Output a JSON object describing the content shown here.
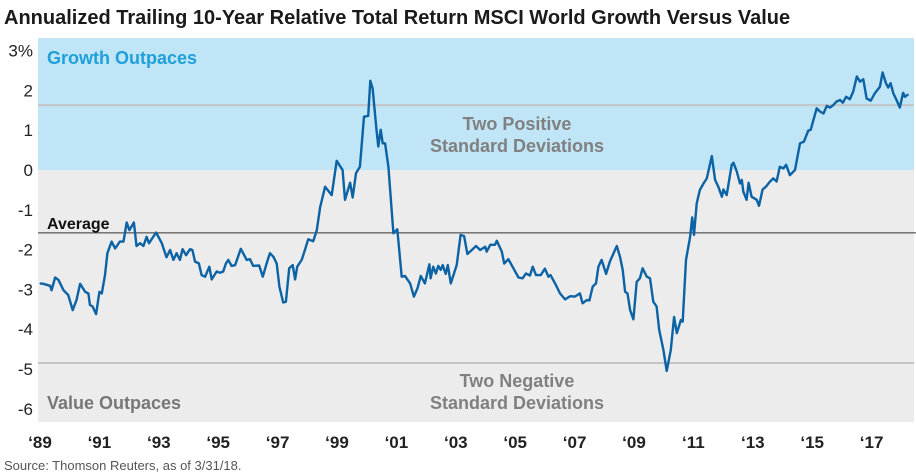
{
  "chart_data": {
    "type": "line",
    "title": "Annualized Trailing 10-Year Relative Total Return MSCI World Growth Versus Value",
    "xlabel": "",
    "ylabel": "",
    "ylim": [
      -6.33,
      3.3
    ],
    "xlim": [
      1989,
      2018.25
    ],
    "grid": false,
    "x_ticks": [
      {
        "value": 1989,
        "label": "‘89"
      },
      {
        "value": 1991,
        "label": "‘91"
      },
      {
        "value": 1993,
        "label": "‘93"
      },
      {
        "value": 1995,
        "label": "‘95"
      },
      {
        "value": 1997,
        "label": "‘97"
      },
      {
        "value": 1999,
        "label": "‘99"
      },
      {
        "value": 2001,
        "label": "‘01"
      },
      {
        "value": 2003,
        "label": "‘03"
      },
      {
        "value": 2005,
        "label": "‘05"
      },
      {
        "value": 2007,
        "label": "‘07"
      },
      {
        "value": 2009,
        "label": "‘09"
      },
      {
        "value": 2011,
        "label": "‘11"
      },
      {
        "value": 2013,
        "label": "‘13"
      },
      {
        "value": 2015,
        "label": "‘15"
      },
      {
        "value": 2017,
        "label": "‘17"
      }
    ],
    "y_ticks": [
      {
        "value": 3,
        "label": "3%"
      },
      {
        "value": 2,
        "label": "2"
      },
      {
        "value": 1,
        "label": "1"
      },
      {
        "value": 0,
        "label": "0"
      },
      {
        "value": -1,
        "label": "-1"
      },
      {
        "value": -2,
        "label": "-2"
      },
      {
        "value": -3,
        "label": "-3"
      },
      {
        "value": -4,
        "label": "-4"
      },
      {
        "value": -5,
        "label": "-5"
      },
      {
        "value": -6,
        "label": "-6"
      }
    ],
    "reference_lines": {
      "average": {
        "value": -1.58,
        "label": "Average"
      },
      "plus_two_sd": {
        "value": 1.63,
        "label_line1": "Two Positive",
        "label_line2": "Standard Deviations"
      },
      "minus_two_sd": {
        "value": -4.85,
        "label_line1": "Two Negative",
        "label_line2": "Standard Deviations"
      }
    },
    "regions": {
      "growth": {
        "label": "Growth Outpaces",
        "color": "#bfe5f6",
        "text_color": "#1fa0db"
      },
      "value": {
        "label": "Value Outpaces",
        "color": "#ececec",
        "text_color": "#777777"
      }
    },
    "colors": {
      "line": "#0b62a4",
      "sd_line": "#c4c4c4",
      "average_line": "#333333",
      "annotation": "#808080"
    },
    "series": [
      {
        "points": [
          [
            1989.0,
            -2.85
          ],
          [
            1989.11,
            -2.86
          ],
          [
            1989.34,
            -2.91
          ],
          [
            1989.39,
            -3.02
          ],
          [
            1989.51,
            -2.7
          ],
          [
            1989.62,
            -2.76
          ],
          [
            1989.79,
            -3.02
          ],
          [
            1989.95,
            -3.14
          ],
          [
            1990.1,
            -3.52
          ],
          [
            1990.23,
            -3.27
          ],
          [
            1990.35,
            -2.86
          ],
          [
            1990.52,
            -3.06
          ],
          [
            1990.63,
            -3.1
          ],
          [
            1990.68,
            -3.39
          ],
          [
            1990.77,
            -3.43
          ],
          [
            1990.89,
            -3.62
          ],
          [
            1991.0,
            -3.06
          ],
          [
            1991.08,
            -3.1
          ],
          [
            1991.19,
            -2.64
          ],
          [
            1991.27,
            -2.09
          ],
          [
            1991.41,
            -1.8
          ],
          [
            1991.53,
            -1.97
          ],
          [
            1991.69,
            -1.8
          ],
          [
            1991.81,
            -1.8
          ],
          [
            1991.92,
            -1.32
          ],
          [
            1992.01,
            -1.51
          ],
          [
            1992.16,
            -1.32
          ],
          [
            1992.25,
            -1.91
          ],
          [
            1992.37,
            -1.84
          ],
          [
            1992.48,
            -1.91
          ],
          [
            1992.59,
            -1.68
          ],
          [
            1992.67,
            -1.84
          ],
          [
            1992.91,
            -1.57
          ],
          [
            1993.1,
            -1.84
          ],
          [
            1993.26,
            -2.19
          ],
          [
            1993.38,
            -2.01
          ],
          [
            1993.49,
            -2.26
          ],
          [
            1993.6,
            -2.09
          ],
          [
            1993.71,
            -2.26
          ],
          [
            1993.8,
            -1.99
          ],
          [
            1993.92,
            -2.14
          ],
          [
            1994.05,
            -1.99
          ],
          [
            1994.13,
            -2.01
          ],
          [
            1994.22,
            -2.3
          ],
          [
            1994.35,
            -2.35
          ],
          [
            1994.44,
            -2.64
          ],
          [
            1994.56,
            -2.68
          ],
          [
            1994.7,
            -2.43
          ],
          [
            1994.78,
            -2.75
          ],
          [
            1994.95,
            -2.55
          ],
          [
            1995.06,
            -2.58
          ],
          [
            1995.17,
            -2.55
          ],
          [
            1995.26,
            -2.35
          ],
          [
            1995.34,
            -2.26
          ],
          [
            1995.45,
            -2.41
          ],
          [
            1995.57,
            -2.39
          ],
          [
            1995.76,
            -1.98
          ],
          [
            1995.96,
            -2.26
          ],
          [
            1996.07,
            -2.24
          ],
          [
            1996.18,
            -2.41
          ],
          [
            1996.38,
            -2.4
          ],
          [
            1996.5,
            -2.68
          ],
          [
            1996.63,
            -2.35
          ],
          [
            1996.74,
            -2.09
          ],
          [
            1996.86,
            -2.18
          ],
          [
            1996.97,
            -2.35
          ],
          [
            1997.06,
            -2.93
          ],
          [
            1997.19,
            -3.33
          ],
          [
            1997.28,
            -3.31
          ],
          [
            1997.39,
            -2.47
          ],
          [
            1997.51,
            -2.39
          ],
          [
            1997.59,
            -2.75
          ],
          [
            1997.66,
            -2.43
          ],
          [
            1997.81,
            -2.26
          ],
          [
            1997.92,
            -2.01
          ],
          [
            1998.03,
            -1.74
          ],
          [
            1998.2,
            -1.79
          ],
          [
            1998.32,
            -1.51
          ],
          [
            1998.43,
            -0.94
          ],
          [
            1998.6,
            -0.42
          ],
          [
            1998.82,
            -0.63
          ],
          [
            1998.99,
            0.23
          ],
          [
            1999.19,
            0.0
          ],
          [
            1999.27,
            -0.75
          ],
          [
            1999.44,
            -0.32
          ],
          [
            1999.53,
            -0.69
          ],
          [
            1999.64,
            -0.08
          ],
          [
            1999.77,
            0.08
          ],
          [
            1999.91,
            1.34
          ],
          [
            2000.05,
            1.36
          ],
          [
            2000.12,
            2.24
          ],
          [
            2000.2,
            2.05
          ],
          [
            2000.33,
            1.01
          ],
          [
            2000.39,
            0.59
          ],
          [
            2000.47,
            1.01
          ],
          [
            2000.54,
            0.67
          ],
          [
            2000.62,
            0.67
          ],
          [
            2000.73,
            0.08
          ],
          [
            2000.9,
            -1.59
          ],
          [
            2001.03,
            -1.49
          ],
          [
            2001.18,
            -2.68
          ],
          [
            2001.29,
            -2.66
          ],
          [
            2001.46,
            -2.85
          ],
          [
            2001.59,
            -3.18
          ],
          [
            2001.71,
            -2.97
          ],
          [
            2001.82,
            -2.66
          ],
          [
            2001.96,
            -2.85
          ],
          [
            2002.11,
            -2.37
          ],
          [
            2002.15,
            -2.72
          ],
          [
            2002.24,
            -2.43
          ],
          [
            2002.33,
            -2.6
          ],
          [
            2002.41,
            -2.41
          ],
          [
            2002.49,
            -2.51
          ],
          [
            2002.56,
            -2.39
          ],
          [
            2002.66,
            -2.61
          ],
          [
            2002.73,
            -2.39
          ],
          [
            2002.83,
            -2.85
          ],
          [
            2003.03,
            -2.39
          ],
          [
            2003.16,
            -1.63
          ],
          [
            2003.28,
            -1.66
          ],
          [
            2003.39,
            -2.11
          ],
          [
            2003.54,
            -2.01
          ],
          [
            2003.68,
            -1.91
          ],
          [
            2003.82,
            -2.01
          ],
          [
            2003.99,
            -1.93
          ],
          [
            2004.04,
            -2.05
          ],
          [
            2004.16,
            -1.88
          ],
          [
            2004.32,
            -1.88
          ],
          [
            2004.38,
            -1.78
          ],
          [
            2004.55,
            -2.05
          ],
          [
            2004.63,
            -2.35
          ],
          [
            2004.77,
            -2.24
          ],
          [
            2004.94,
            -2.47
          ],
          [
            2005.11,
            -2.7
          ],
          [
            2005.25,
            -2.72
          ],
          [
            2005.36,
            -2.6
          ],
          [
            2005.5,
            -2.65
          ],
          [
            2005.59,
            -2.43
          ],
          [
            2005.7,
            -2.64
          ],
          [
            2005.86,
            -2.64
          ],
          [
            2006.0,
            -2.48
          ],
          [
            2006.12,
            -2.68
          ],
          [
            2006.19,
            -2.64
          ],
          [
            2006.37,
            -2.89
          ],
          [
            2006.51,
            -3.1
          ],
          [
            2006.68,
            -3.25
          ],
          [
            2006.85,
            -3.17
          ],
          [
            2007.01,
            -3.18
          ],
          [
            2007.18,
            -3.1
          ],
          [
            2007.27,
            -3.35
          ],
          [
            2007.41,
            -3.27
          ],
          [
            2007.5,
            -3.28
          ],
          [
            2007.61,
            -2.93
          ],
          [
            2007.72,
            -2.85
          ],
          [
            2007.8,
            -2.43
          ],
          [
            2007.91,
            -2.26
          ],
          [
            2008.06,
            -2.61
          ],
          [
            2008.19,
            -2.3
          ],
          [
            2008.42,
            -1.91
          ],
          [
            2008.53,
            -2.18
          ],
          [
            2008.62,
            -2.51
          ],
          [
            2008.7,
            -3.06
          ],
          [
            2008.78,
            -3.1
          ],
          [
            2008.87,
            -3.52
          ],
          [
            2008.98,
            -3.75
          ],
          [
            2009.09,
            -2.81
          ],
          [
            2009.2,
            -2.72
          ],
          [
            2009.29,
            -2.47
          ],
          [
            2009.43,
            -2.68
          ],
          [
            2009.54,
            -2.72
          ],
          [
            2009.65,
            -3.31
          ],
          [
            2009.76,
            -3.43
          ],
          [
            2009.85,
            -4.02
          ],
          [
            2009.99,
            -4.52
          ],
          [
            2010.1,
            -5.05
          ],
          [
            2010.24,
            -4.52
          ],
          [
            2010.35,
            -3.69
          ],
          [
            2010.44,
            -4.1
          ],
          [
            2010.58,
            -3.77
          ],
          [
            2010.64,
            -3.81
          ],
          [
            2010.75,
            -2.26
          ],
          [
            2010.89,
            -1.68
          ],
          [
            2010.96,
            -1.19
          ],
          [
            2011.02,
            -1.63
          ],
          [
            2011.11,
            -0.84
          ],
          [
            2011.22,
            -0.5
          ],
          [
            2011.34,
            -0.34
          ],
          [
            2011.45,
            -0.21
          ],
          [
            2011.62,
            0.35
          ],
          [
            2011.73,
            -0.25
          ],
          [
            2011.84,
            -0.42
          ],
          [
            2011.96,
            -0.67
          ],
          [
            2012.01,
            -0.49
          ],
          [
            2012.12,
            -0.63
          ],
          [
            2012.29,
            0.13
          ],
          [
            2012.35,
            0.18
          ],
          [
            2012.46,
            -0.04
          ],
          [
            2012.57,
            -0.34
          ],
          [
            2012.63,
            -0.25
          ],
          [
            2012.68,
            -0.54
          ],
          [
            2012.79,
            -0.75
          ],
          [
            2012.86,
            -0.32
          ],
          [
            2012.96,
            -0.67
          ],
          [
            2013.13,
            -0.75
          ],
          [
            2013.21,
            -0.9
          ],
          [
            2013.33,
            -0.49
          ],
          [
            2013.44,
            -0.42
          ],
          [
            2013.58,
            -0.29
          ],
          [
            2013.69,
            -0.21
          ],
          [
            2013.8,
            -0.29
          ],
          [
            2013.91,
            0.08
          ],
          [
            2014.03,
            0.04
          ],
          [
            2014.12,
            0.13
          ],
          [
            2014.25,
            -0.13
          ],
          [
            2014.42,
            0.0
          ],
          [
            2014.59,
            0.67
          ],
          [
            2014.72,
            0.71
          ],
          [
            2014.87,
            0.99
          ],
          [
            2014.95,
            1.01
          ],
          [
            2015.15,
            1.55
          ],
          [
            2015.26,
            1.47
          ],
          [
            2015.38,
            1.42
          ],
          [
            2015.49,
            1.61
          ],
          [
            2015.6,
            1.57
          ],
          [
            2015.71,
            1.63
          ],
          [
            2015.82,
            1.72
          ],
          [
            2015.94,
            1.76
          ],
          [
            2016.03,
            1.69
          ],
          [
            2016.14,
            1.84
          ],
          [
            2016.27,
            1.78
          ],
          [
            2016.38,
            1.97
          ],
          [
            2016.5,
            2.35
          ],
          [
            2016.61,
            2.22
          ],
          [
            2016.72,
            2.28
          ],
          [
            2016.83,
            1.8
          ],
          [
            2016.97,
            1.74
          ],
          [
            2017.11,
            1.93
          ],
          [
            2017.28,
            2.09
          ],
          [
            2017.37,
            2.45
          ],
          [
            2017.48,
            2.18
          ],
          [
            2017.56,
            2.07
          ],
          [
            2017.64,
            2.18
          ],
          [
            2017.73,
            1.93
          ],
          [
            2017.84,
            1.76
          ],
          [
            2017.95,
            1.57
          ],
          [
            2018.06,
            1.94
          ],
          [
            2018.12,
            1.84
          ],
          [
            2018.23,
            1.9
          ]
        ]
      }
    ]
  },
  "source": "Source: Thomson Reuters, as of 3/31/18."
}
